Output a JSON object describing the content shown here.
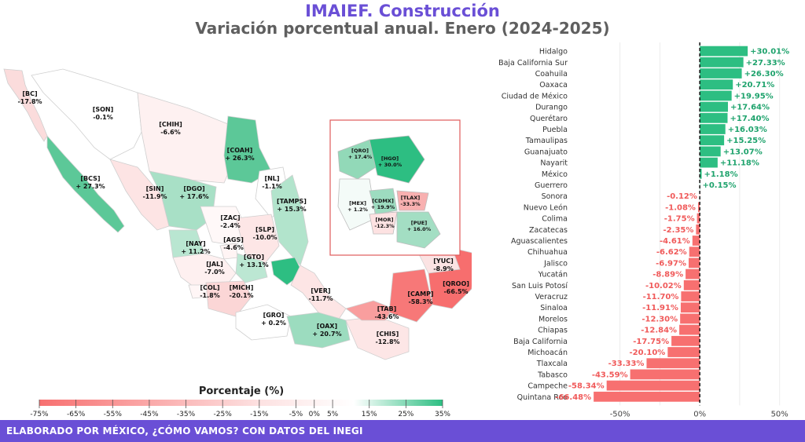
{
  "header": {
    "title": "IMAIEF. Construcción",
    "subtitle": "Variación porcentual anual. Enero (2024-2025)"
  },
  "footer": {
    "text": "ELABORADO POR MÉXICO, ¿CÓMO VAMOS? CON DATOS DEL INEGI"
  },
  "colors": {
    "title": "#6a4fd6",
    "subtitle": "#5f5f5f",
    "footer_bg": "#6a4fd6",
    "positive": "#2dbe82",
    "negative": "#f77070",
    "positive_text": "#1fa36d",
    "negative_text": "#f05a5a"
  },
  "map": {
    "legend_title": "Porcentaje (%)",
    "legend_ticks": [
      "-75%",
      "-65%",
      "-55%",
      "-45%",
      "-35%",
      "-25%",
      "-15%",
      "-5%",
      "0%",
      "5%",
      "15%",
      "25%",
      "35%"
    ],
    "states": [
      {
        "abbr": "[BC]",
        "value": "-17.8%"
      },
      {
        "abbr": "[SON]",
        "value": "-0.1%"
      },
      {
        "abbr": "[CHIH]",
        "value": "-6.6%"
      },
      {
        "abbr": "[COAH]",
        "value": "+ 26.3%"
      },
      {
        "abbr": "[BCS]",
        "value": "+ 27.3%"
      },
      {
        "abbr": "[SIN]",
        "value": "-11.9%"
      },
      {
        "abbr": "[DGO]",
        "value": "+ 17.6%"
      },
      {
        "abbr": "[NL]",
        "value": "-1.1%"
      },
      {
        "abbr": "[TAMPS]",
        "value": "+ 15.3%"
      },
      {
        "abbr": "[ZAC]",
        "value": "-2.4%"
      },
      {
        "abbr": "[SLP]",
        "value": "-10.0%"
      },
      {
        "abbr": "[AGS]",
        "value": "-4.6%"
      },
      {
        "abbr": "[NAY]",
        "value": "+ 11.2%"
      },
      {
        "abbr": "[GTO]",
        "value": "+ 13.1%"
      },
      {
        "abbr": "[JAL]",
        "value": "-7.0%"
      },
      {
        "abbr": "[COL]",
        "value": "-1.8%"
      },
      {
        "abbr": "[MICH]",
        "value": "-20.1%"
      },
      {
        "abbr": "[GRO]",
        "value": "+ 0.2%"
      },
      {
        "abbr": "[VER]",
        "value": "-11.7%"
      },
      {
        "abbr": "[OAX]",
        "value": "+ 20.7%"
      },
      {
        "abbr": "[TAB]",
        "value": "-43.6%"
      },
      {
        "abbr": "[CAMP]",
        "value": "-58.3%"
      },
      {
        "abbr": "[YUC]",
        "value": "-8.9%"
      },
      {
        "abbr": "[QROO]",
        "value": "-66.5%"
      },
      {
        "abbr": "[CHIS]",
        "value": "-12.8%"
      }
    ],
    "inset_states": [
      {
        "abbr": "[QRO]",
        "value": "+ 17.4%"
      },
      {
        "abbr": "[HGO]",
        "value": "+ 30.0%"
      },
      {
        "abbr": "[MEX]",
        "value": "+ 1.2%"
      },
      {
        "abbr": "[CDMX]",
        "value": "+ 19.9%"
      },
      {
        "abbr": "[TLAX]",
        "value": "-33.3%"
      },
      {
        "abbr": "[MOR]",
        "value": "-12.3%"
      },
      {
        "abbr": "[PUE]",
        "value": "+ 16.0%"
      }
    ]
  },
  "chart_data": {
    "type": "bar",
    "orientation": "horizontal",
    "categories": [
      "Hidalgo",
      "Baja California Sur",
      "Coahuila",
      "Oaxaca",
      "Ciudad de México",
      "Durango",
      "Querétaro",
      "Puebla",
      "Tamaulipas",
      "Guanajuato",
      "Nayarit",
      "México",
      "Guerrero",
      "Sonora",
      "Nuevo León",
      "Colima",
      "Zacatecas",
      "Aguascalientes",
      "Chihuahua",
      "Jalisco",
      "Yucatán",
      "San Luis Potosí",
      "Veracruz",
      "Sinaloa",
      "Morelos",
      "Chiapas",
      "Baja California",
      "Michoacán",
      "Tlaxcala",
      "Tabasco",
      "Campeche",
      "Quintana Roo"
    ],
    "values": [
      30.01,
      27.33,
      26.3,
      20.71,
      19.95,
      17.64,
      17.4,
      16.03,
      15.25,
      13.07,
      11.18,
      1.18,
      0.15,
      -0.12,
      -1.08,
      -1.75,
      -2.35,
      -4.61,
      -6.62,
      -6.97,
      -8.89,
      -10.02,
      -11.7,
      -11.91,
      -12.3,
      -12.84,
      -17.75,
      -20.1,
      -33.33,
      -43.59,
      -58.34,
      -66.48
    ],
    "value_labels": [
      "+30.01%",
      "+27.33%",
      "+26.30%",
      "+20.71%",
      "+19.95%",
      "+17.64%",
      "+17.40%",
      "+16.03%",
      "+15.25%",
      "+13.07%",
      "+11.18%",
      "+1.18%",
      "+0.15%",
      "-0.12%",
      "-1.08%",
      "-1.75%",
      "-2.35%",
      "-4.61%",
      "-6.62%",
      "-6.97%",
      "-8.89%",
      "-10.02%",
      "-11.70%",
      "-11.91%",
      "-12.30%",
      "-12.84%",
      "-17.75%",
      "-20.10%",
      "-33.33%",
      "-43.59%",
      "-58.34%",
      "-66.48%"
    ],
    "x_ticks": [
      "-50%",
      "0%",
      "50%"
    ],
    "x_tick_values": [
      -50,
      0,
      50
    ],
    "xlim": [
      -70,
      60
    ],
    "grid": true,
    "title": "",
    "xlabel": "",
    "ylabel": ""
  }
}
